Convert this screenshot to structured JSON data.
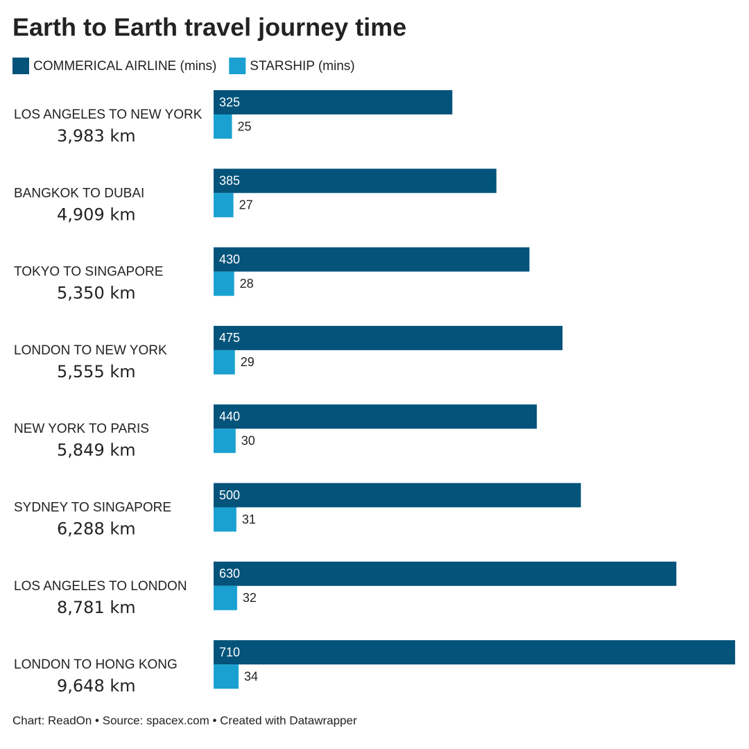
{
  "chart_data": {
    "type": "grouped-hbar",
    "title": "Earth to Earth travel journey time",
    "categories": [
      "LOS ANGELES TO NEW YORK",
      "BANGKOK TO DUBAI",
      "TOKYO TO SINGAPORE",
      "LONDON TO NEW YORK",
      "NEW YORK TO PARIS",
      "SYDNEY TO SINGAPORE",
      "LOS ANGELES TO LONDON",
      "LONDON TO HONG KONG"
    ],
    "distances": [
      "3,983 km",
      "4,909 km",
      "5,350 km",
      "5,555 km",
      "5,849 km",
      "6,288 km",
      "8,781 km",
      "9,648 km"
    ],
    "series": [
      {
        "name": "COMMERICAL AIRLINE (mins)",
        "color": "#03537a",
        "values": [
          325,
          385,
          430,
          475,
          440,
          500,
          630,
          710
        ]
      },
      {
        "name": "STARSHIP (mins)",
        "color": "#1aa1d1",
        "values": [
          25,
          27,
          28,
          29,
          30,
          31,
          32,
          34
        ]
      }
    ],
    "footer": "Chart: ReadOn • Source: spacex.com • Created with Datawrapper"
  }
}
